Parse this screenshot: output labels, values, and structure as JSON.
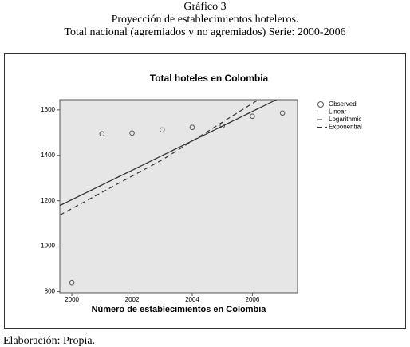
{
  "header": {
    "number": "Gráfico 3",
    "title": "Proyección de establecimientos hoteleros.",
    "subtitle": "Total nacional (agremiados y no agremiados) Serie: 2000-2006"
  },
  "chart_data": {
    "type": "scatter",
    "title": "Total hoteles en Colombia",
    "x_label": "Número de establecimientos en Colombia",
    "x": [
      2000,
      2001,
      2002,
      2003,
      2004,
      2005,
      2006,
      2007
    ],
    "series": [
      {
        "name": "Observed",
        "color": "#555555",
        "values": [
          840,
          1495,
          1498,
          1512,
          1523,
          1530,
          1572,
          1586
        ]
      },
      {
        "name": "Linear",
        "color": "#333333",
        "style": "solid",
        "x": [
          1999.6,
          2006.8
        ],
        "values": [
          1179,
          1645
        ]
      },
      {
        "name": "Logarithmic",
        "color": "#333333",
        "style": "dashdot",
        "x": [
          1999.6,
          2006.8
        ],
        "values": [
          1179,
          1645
        ]
      },
      {
        "name": "Exponential",
        "color": "#333333",
        "style": "dashed",
        "x": [
          1999.6,
          2003,
          2006.2
        ],
        "values": [
          1137,
          1380,
          1645
        ]
      }
    ],
    "xlim": [
      1999.6,
      2007.5
    ],
    "ylim": [
      795,
      1645
    ],
    "xticks": [
      2000,
      2002,
      2004,
      2006
    ],
    "yticks": [
      800,
      1000,
      1200,
      1400,
      1600
    ],
    "background": "#e6e6e6"
  },
  "footer": "Elaboración: Propia."
}
